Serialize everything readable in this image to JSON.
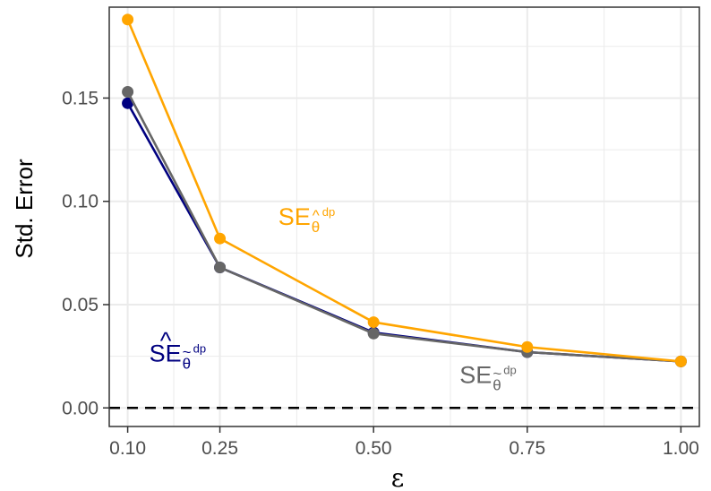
{
  "chart_data": {
    "type": "line",
    "xlabel": "ε",
    "ylabel": "Std. Error",
    "xlim": [
      0.07,
      1.03
    ],
    "ylim": [
      -0.009,
      0.194
    ],
    "x_ticks": [
      "0.10",
      "0.25",
      "0.50",
      "0.75",
      "1.00"
    ],
    "y_ticks": [
      "0.00",
      "0.05",
      "0.10",
      "0.15"
    ],
    "grid": true,
    "reference_line": {
      "y": 0,
      "style": "dashed",
      "color": "#000000"
    },
    "x": [
      0.1,
      0.25,
      0.5,
      0.75,
      1.0
    ],
    "series": [
      {
        "key": "navy",
        "color": "#000080",
        "values": [
          0.1475,
          0.068,
          0.0365,
          0.027,
          0.0225
        ]
      },
      {
        "key": "grey",
        "color": "#666666",
        "values": [
          0.153,
          0.068,
          0.036,
          0.027,
          0.0225
        ]
      },
      {
        "key": "orange",
        "color": "#FFA500",
        "values": [
          0.188,
          0.082,
          0.0415,
          0.0295,
          0.0225
        ]
      }
    ],
    "annotations": [
      {
        "key": "orange",
        "main": "SE",
        "sub": "θ",
        "sub_accent": "^",
        "sup": "dp",
        "color": "#FFA500",
        "x": 0.345,
        "y": 0.0885
      },
      {
        "key": "navy",
        "main": "SE",
        "main_accent": "^",
        "sub": "θ",
        "sub_accent": "~",
        "sup": "dp",
        "color": "#000080",
        "x": 0.135,
        "y": 0.0225
      },
      {
        "key": "grey",
        "main": "SE",
        "sub": "θ",
        "sub_accent": "~",
        "sup": "dp",
        "color": "#666666",
        "x": 0.64,
        "y": 0.012
      }
    ]
  }
}
